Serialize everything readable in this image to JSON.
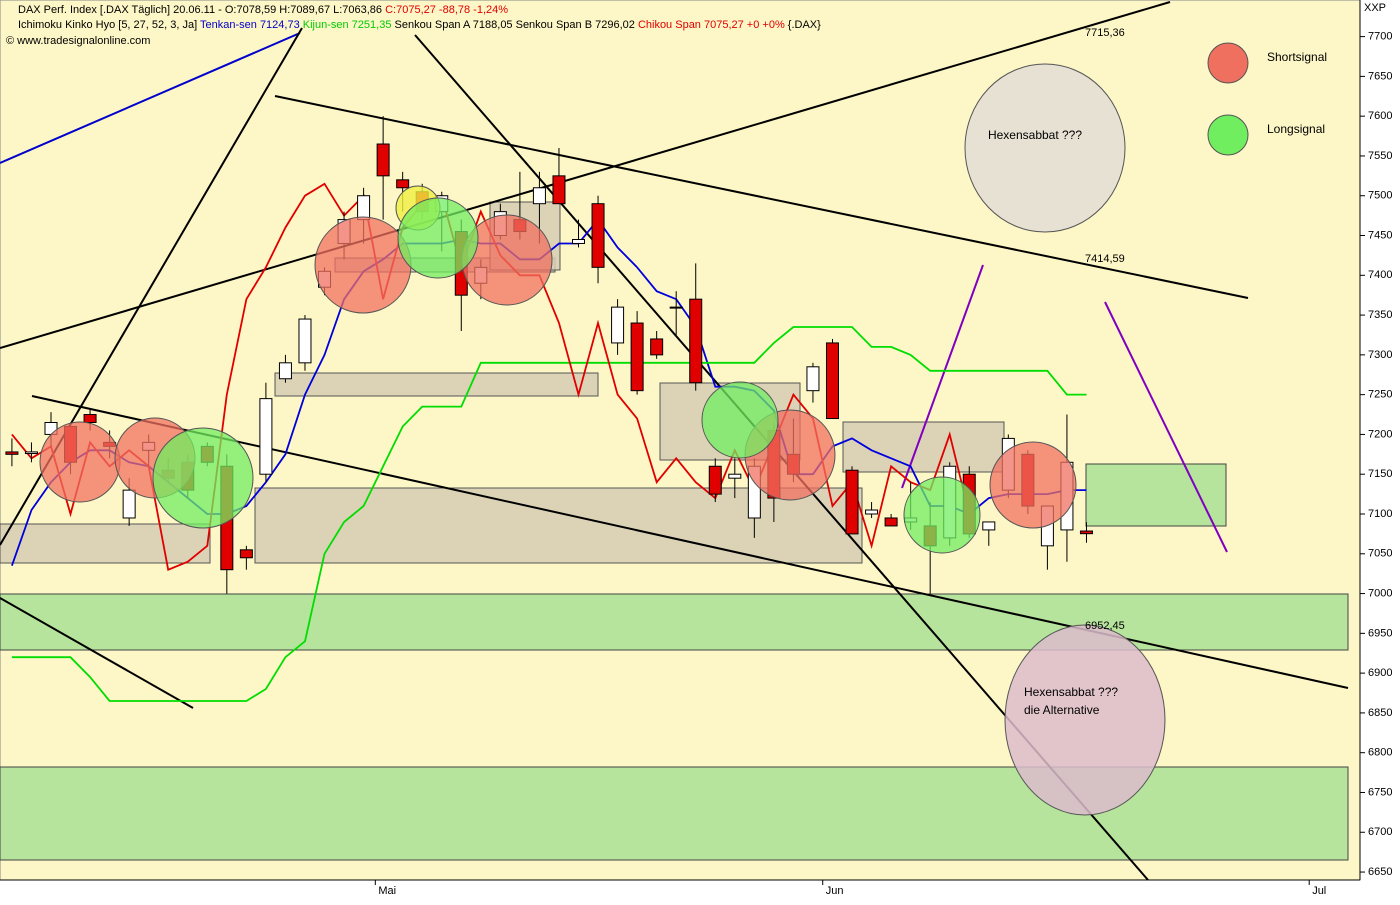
{
  "chart_data": {
    "type": "candlestick",
    "header": {
      "line1": [
        {
          "text": "DAX Perf. Index [.DAX  Täglich] 20.06.11 - O:7078,59 H:7089,67 L:7063,86 ",
          "color": "#000000"
        },
        {
          "text": "C:7075,27 -88,78 -1,24%",
          "color": "#e00000"
        }
      ],
      "line2": [
        {
          "text": "Ichimoku Kinko Hyo [5, 27, 52, 3, Ja] ",
          "color": "#000000"
        },
        {
          "text": "Tenkan-sen 7124,73 ",
          "color": "#0000cc"
        },
        {
          "text": "Kijun-sen 7251,35 ",
          "color": "#00cc00"
        },
        {
          "text": "Senkou Span A 7188,05 Senkou Span B 7296,02 ",
          "color": "#000000"
        },
        {
          "text": "Chikou Span 7075,27 +0 +0% ",
          "color": "#e00000"
        },
        {
          "text": "{.DAX}",
          "color": "#000000"
        }
      ],
      "line3": "© www.tradesignalonline.com"
    },
    "axis_corner": "XXP",
    "categories": [
      null,
      null,
      null,
      null,
      null,
      null,
      null,
      null,
      null,
      null,
      null,
      null,
      null,
      null,
      null,
      null,
      null,
      null,
      null,
      null,
      null,
      null,
      null,
      null,
      null,
      null,
      null,
      null,
      null,
      null,
      null,
      null,
      null,
      null,
      null,
      null,
      null,
      null,
      null,
      null,
      null,
      null,
      null,
      null,
      null,
      null,
      null,
      null,
      null,
      null,
      null,
      null,
      null,
      null,
      null,
      null
    ],
    "open": [
      7178,
      7176,
      7200,
      7210,
      7225,
      7190,
      7095,
      7180,
      7155,
      7165,
      7185,
      7160,
      7055,
      7150,
      7270,
      7290,
      7385,
      7440,
      7470,
      7565,
      7520,
      7505,
      7480,
      7455,
      7390,
      7450,
      7470,
      7490,
      7525,
      7440,
      7490,
      7315,
      7340,
      7320,
      7360,
      7370,
      7160,
      7145,
      7095,
      7205,
      7175,
      7255,
      7315,
      7155,
      7100,
      7095,
      7090,
      7085,
      7070,
      7150,
      7080,
      7130,
      7175,
      7060,
      7080,
      7078.59
    ],
    "high": [
      7195,
      7190,
      7228,
      7215,
      7232,
      7205,
      7145,
      7200,
      7170,
      7175,
      7190,
      7175,
      7060,
      7265,
      7300,
      7350,
      7410,
      7480,
      7510,
      7600,
      7530,
      7515,
      7505,
      7470,
      7420,
      7490,
      7530,
      7530,
      7560,
      7470,
      7500,
      7370,
      7355,
      7330,
      7380,
      7415,
      7170,
      7170,
      7170,
      7215,
      7220,
      7290,
      7320,
      7160,
      7115,
      7100,
      7140,
      7115,
      7165,
      7160,
      7085,
      7200,
      7180,
      7110,
      7225,
      7089.67
    ],
    "low": [
      7160,
      7165,
      7185,
      7150,
      7205,
      7170,
      7085,
      7160,
      7140,
      7120,
      7160,
      7000,
      7030,
      7140,
      7265,
      7280,
      7375,
      7420,
      7440,
      7470,
      7480,
      7470,
      7430,
      7330,
      7370,
      7445,
      7445,
      7440,
      7490,
      7435,
      7390,
      7300,
      7250,
      7295,
      7325,
      7255,
      7115,
      7120,
      7070,
      7090,
      7140,
      7240,
      7220,
      7075,
      7095,
      7085,
      7080,
      7000,
      7060,
      7070,
      7060,
      7120,
      7100,
      7030,
      7040,
      7063.86
    ],
    "close": [
      7175,
      7178,
      7215,
      7165,
      7215,
      7185,
      7130,
      7190,
      7145,
      7130,
      7165,
      7030,
      7045,
      7245,
      7290,
      7345,
      7405,
      7470,
      7500,
      7525,
      7510,
      7480,
      7500,
      7375,
      7410,
      7480,
      7455,
      7510,
      7490,
      7445,
      7410,
      7360,
      7255,
      7300,
      7360,
      7265,
      7125,
      7150,
      7160,
      7120,
      7150,
      7285,
      7220,
      7075,
      7105,
      7085,
      7095,
      7060,
      7160,
      7075,
      7090,
      7195,
      7110,
      7110,
      7165,
      7075.27
    ],
    "up_color": "#ffffff",
    "down_color": "#e00000",
    "series": [
      {
        "color": "#0000dd",
        "values": [
          7035,
          7105,
          7140,
          7165,
          7180,
          7180,
          7165,
          7160,
          7140,
          7120,
          7100,
          7100,
          7110,
          7140,
          7175,
          7250,
          7300,
          7370,
          7405,
          7420,
          7440,
          7440,
          7440,
          7445,
          7440,
          7440,
          7420,
          7420,
          7440,
          7440,
          7470,
          7435,
          7410,
          7380,
          7370,
          7335,
          7260,
          7260,
          7255,
          7230,
          7150,
          7150,
          7185,
          7195,
          7180,
          7170,
          7160,
          7110,
          7110,
          7100,
          7120,
          7125,
          7125,
          7125,
          7130,
          7130
        ]
      },
      {
        "color": "#00dd00",
        "values": [
          6920,
          6920,
          6920,
          6920,
          6895,
          6865,
          6865,
          6865,
          6865,
          6865,
          6865,
          6865,
          6865,
          6880,
          6920,
          6940,
          7050,
          7090,
          7110,
          7160,
          7210,
          7235,
          7235,
          7235,
          7290,
          7290,
          7290,
          7290,
          7290,
          7290,
          7290,
          7290,
          7290,
          7290,
          7290,
          7290,
          7290,
          7290,
          7290,
          7315,
          7335,
          7335,
          7335,
          7335,
          7310,
          7310,
          7300,
          7280,
          7280,
          7280,
          7280,
          7280,
          7280,
          7280,
          7250,
          7250
        ]
      },
      {
        "color": "#e00000",
        "values": [
          7200,
          7170,
          7185,
          7100,
          7190,
          7160,
          7180,
          7160,
          7030,
          7040,
          7060,
          7250,
          7370,
          7410,
          7460,
          7500,
          7515,
          7475,
          7500,
          7370,
          7460,
          7490,
          7500,
          7410,
          7480,
          7425,
          7400,
          7400,
          7340,
          7250,
          7340,
          7250,
          7220,
          7140,
          7170,
          7140,
          7120,
          7180,
          7130,
          7190,
          7250,
          7220,
          7110,
          7140,
          7060,
          7160,
          7140,
          7130,
          7200,
          7100,
          null,
          null,
          null,
          null,
          null,
          null
        ]
      }
    ],
    "xlim": [
      -0.61,
      69.0
    ],
    "xticks": [
      {
        "value": 18.6,
        "label": "Mai"
      },
      {
        "value": 41.5,
        "label": "Jun"
      },
      {
        "value": 66.4,
        "label": "Jul"
      }
    ],
    "ylim": [
      6640,
      7746
    ],
    "yticks": [
      6650,
      6700,
      6750,
      6800,
      6850,
      6900,
      6950,
      7000,
      7050,
      7100,
      7150,
      7200,
      7250,
      7300,
      7350,
      7400,
      7450,
      7500,
      7550,
      7600,
      7650,
      7700
    ],
    "annotations": {
      "level_high": "7715,36",
      "level_mid": "7414,59",
      "level_low": "6952,45",
      "scenario_1": "Hexensabbat ???",
      "scenario_2_line1": "Hexensabbat ???",
      "scenario_2_line2": "die Alternative"
    },
    "legend": [
      {
        "name": "Shortsignal",
        "color": "#f07060"
      },
      {
        "name": "Longsignal",
        "color": "#70ee60"
      }
    ]
  }
}
